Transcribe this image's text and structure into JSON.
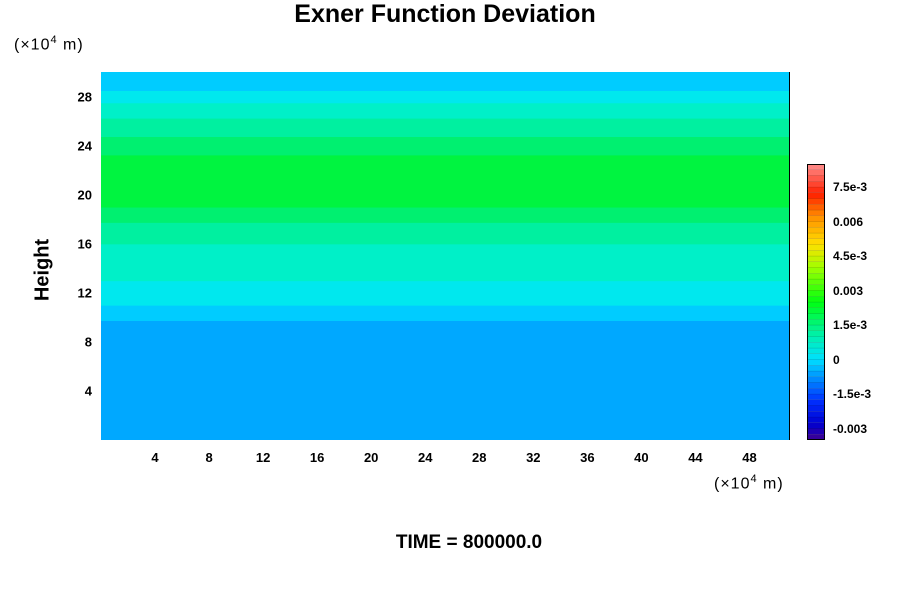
{
  "title": "Exner Function Deviation",
  "y_unit": {
    "prefix": "(×10",
    "exp": "4",
    "suffix": " m)"
  },
  "x_unit": {
    "prefix": "(×10",
    "exp": "4",
    "suffix": " m)"
  },
  "ylabel": "Height",
  "footer": "TIME = 800000.0",
  "chart_data": {
    "type": "heatmap",
    "title": "Exner Function Deviation",
    "xlabel": "",
    "ylabel": "Height",
    "x_unit": "(×10^4 m)",
    "y_unit": "(×10^4 m)",
    "xlim": [
      0,
      51
    ],
    "ylim": [
      0,
      30
    ],
    "x_ticks": [
      "4",
      "8",
      "12",
      "16",
      "20",
      "24",
      "28",
      "32",
      "36",
      "40",
      "44",
      "48"
    ],
    "x_tick_values": [
      4,
      8,
      12,
      16,
      20,
      24,
      28,
      32,
      36,
      40,
      44,
      48
    ],
    "y_ticks": [
      "4",
      "8",
      "12",
      "16",
      "20",
      "24",
      "28"
    ],
    "y_tick_values": [
      4,
      8,
      12,
      16,
      20,
      24,
      28
    ],
    "colorbar": {
      "range": [
        -0.0035,
        0.0085
      ],
      "tick_labels": [
        "7.5e-3",
        "0.006",
        "4.5e-3",
        "0.003",
        "1.5e-3",
        "0",
        "-1.5e-3",
        "-0.003"
      ],
      "tick_values": [
        0.0075,
        0.006,
        0.0045,
        0.003,
        0.0015,
        0,
        -0.0015,
        -0.003
      ]
    },
    "profile": {
      "height": [
        0,
        9,
        9.8,
        11,
        13,
        16,
        19,
        21,
        23,
        26,
        28.5,
        30
      ],
      "value": [
        -0.0007,
        -0.0007,
        -0.0002,
        0.0003,
        0.0007,
        0.0013,
        0.0022,
        0.0026,
        0.0023,
        0.0014,
        0.0003,
        0.0
      ]
    },
    "contour_colors": [
      {
        "value": -0.0007,
        "color": "#00a8ff"
      },
      {
        "value": -0.0002,
        "color": "#00ccff"
      },
      {
        "value": 0.0003,
        "color": "#00e8ee"
      },
      {
        "value": 0.0007,
        "color": "#00f0c8"
      },
      {
        "value": 0.0013,
        "color": "#00f0a0"
      },
      {
        "value": 0.0018,
        "color": "#00f070"
      },
      {
        "value": 0.0022,
        "color": "#00f440"
      },
      {
        "value": 0.0026,
        "color": "#00ff10"
      }
    ]
  }
}
